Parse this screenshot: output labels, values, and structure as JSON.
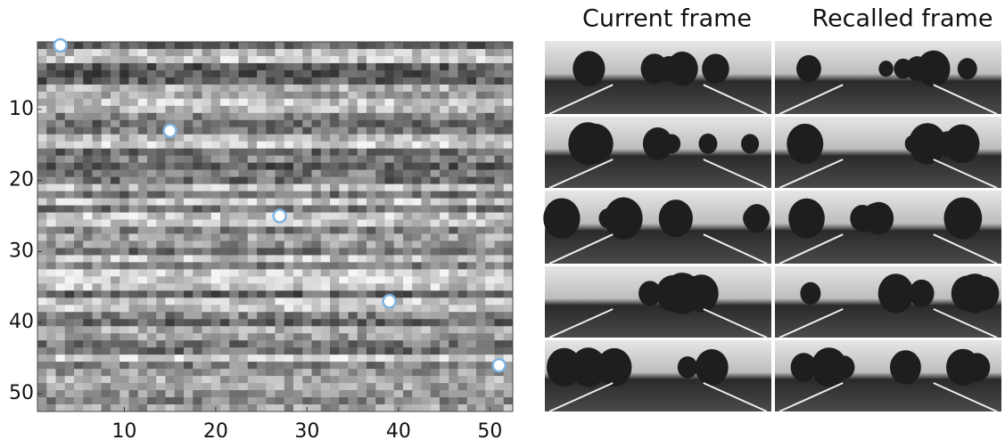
{
  "chart_data": {
    "type": "scatter",
    "x": [
      3,
      15,
      27,
      39,
      51
    ],
    "series": [
      {
        "color": "#7fb3e0",
        "values": [
          1,
          13,
          25,
          37,
          46
        ]
      }
    ],
    "xlim": [
      0.5,
      52.5
    ],
    "ylim": [
      52.5,
      0.5
    ],
    "xticks": [
      10,
      20,
      30,
      40,
      50
    ],
    "yticks": [
      10,
      20,
      30,
      40,
      50
    ]
  },
  "image_grid": {
    "column_titles": [
      "Current frame",
      "Recalled frame"
    ]
  }
}
